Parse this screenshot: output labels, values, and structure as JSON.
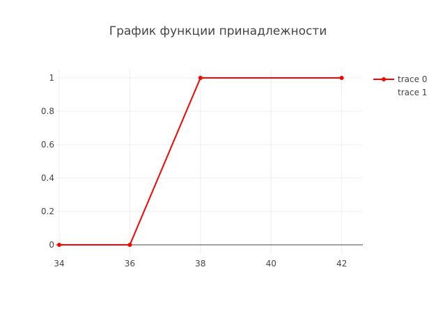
{
  "chart_data": {
    "type": "line",
    "title": "График функции принадлежности",
    "xlabel": "",
    "ylabel": "",
    "xlim": [
      33.9,
      42.6
    ],
    "ylim": [
      -0.05,
      1.05
    ],
    "x_ticks": [
      34,
      36,
      38,
      40,
      42
    ],
    "y_ticks": [
      0,
      0.2,
      0.4,
      0.6,
      0.8,
      1
    ],
    "grid": true,
    "legend_position": "top-right",
    "series": [
      {
        "name": "trace 0",
        "color": "#ff0000",
        "mode": "lines+markers",
        "x": [
          34,
          36,
          38,
          42
        ],
        "y": [
          0,
          0,
          1,
          1
        ]
      },
      {
        "name": "trace 1",
        "color": "#ff0000",
        "mode": "none",
        "x": [],
        "y": []
      }
    ]
  }
}
